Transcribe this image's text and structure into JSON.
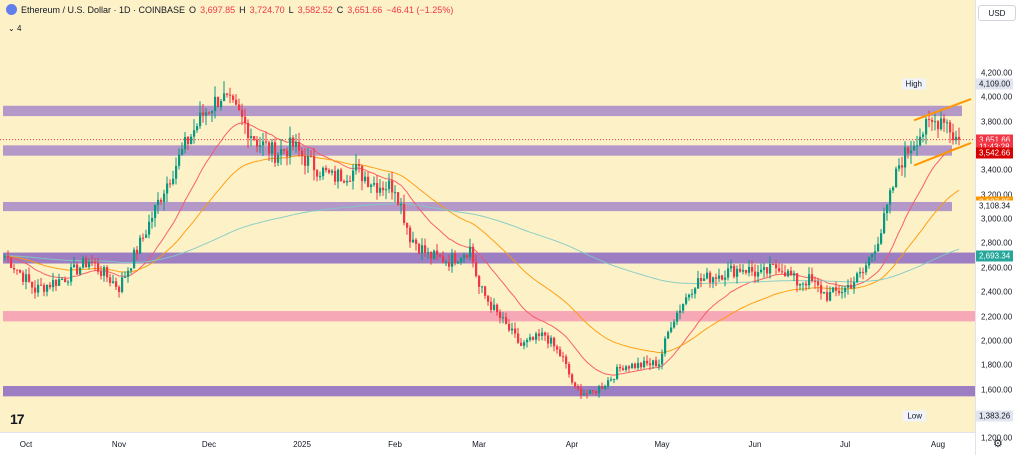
{
  "legend": {
    "title": "Ethereum / U.S. Dollar · 1D · COINBASE",
    "o_label": "O",
    "o_val": "3,697.85",
    "h_label": "H",
    "h_val": "3,724.70",
    "l_label": "L",
    "l_val": "3,582.52",
    "c_label": "C",
    "c_val": "3,651.66",
    "change": "−46.41 (−1.25%)"
  },
  "indicators_toggle": "4",
  "currency_button": "USD",
  "high_label": "High",
  "low_label": "Low",
  "watermark": "17",
  "colors": {
    "up": "#089981",
    "down": "#f23645",
    "ema_fast": "#f7525f",
    "ema_slow": "#ff9800",
    "ema_long": "#80cbc4",
    "zone_purple": "#9b7bc8",
    "zone_deep": "#7e57c2",
    "zone_pink": "#f48fb1",
    "channel": "#ff9800"
  },
  "chart_data": {
    "type": "candlestick",
    "title": "Ethereum / U.S. Dollar · 1D · COINBASE",
    "y_axis": {
      "ylim": [
        1080,
        4330
      ],
      "ticks": [
        "4,200.00",
        "4,000.00",
        "3,800.00",
        "3,600.00",
        "3,400.00",
        "3,200.00",
        "3,000.00",
        "2,800.00",
        "2,600.00",
        "2,400.00",
        "2,200.00",
        "2,000.00",
        "1,800.00",
        "1,600.00",
        "1,400.00",
        "1,200.00"
      ],
      "tick_values": [
        4200,
        4000,
        3800,
        3600,
        3400,
        3200,
        3000,
        2800,
        2600,
        2400,
        2200,
        2000,
        1800,
        1600,
        1400,
        1200
      ]
    },
    "x_axis": {
      "labels": [
        "Oct",
        "Nov",
        "Dec",
        "2025",
        "Feb",
        "Mar",
        "Apr",
        "May",
        "Jun",
        "Jul",
        "Aug"
      ],
      "label_index": [
        7,
        38,
        68,
        99,
        130,
        158,
        189,
        219,
        250,
        280,
        311
      ]
    },
    "keypoints": [
      [
        0,
        2700
      ],
      [
        10,
        2420
      ],
      [
        20,
        2520
      ],
      [
        28,
        2660
      ],
      [
        38,
        2440
      ],
      [
        46,
        2850
      ],
      [
        53,
        3250
      ],
      [
        60,
        3600
      ],
      [
        66,
        3860
      ],
      [
        72,
        4010
      ],
      [
        78,
        3850
      ],
      [
        84,
        3640
      ],
      [
        90,
        3540
      ],
      [
        96,
        3600
      ],
      [
        101,
        3470
      ],
      [
        109,
        3340
      ],
      [
        117,
        3400
      ],
      [
        124,
        3280
      ],
      [
        130,
        3270
      ],
      [
        135,
        2860
      ],
      [
        141,
        2700
      ],
      [
        148,
        2660
      ],
      [
        155,
        2760
      ],
      [
        158,
        2440
      ],
      [
        164,
        2220
      ],
      [
        172,
        1960
      ],
      [
        180,
        2050
      ],
      [
        186,
        1850
      ],
      [
        190,
        1600
      ],
      [
        195,
        1560
      ],
      [
        200,
        1650
      ],
      [
        206,
        1800
      ],
      [
        212,
        1800
      ],
      [
        218,
        1820
      ],
      [
        222,
        2150
      ],
      [
        230,
        2480
      ],
      [
        238,
        2550
      ],
      [
        246,
        2600
      ],
      [
        252,
        2540
      ],
      [
        258,
        2620
      ],
      [
        264,
        2480
      ],
      [
        268,
        2500
      ],
      [
        274,
        2370
      ],
      [
        280,
        2430
      ],
      [
        286,
        2560
      ],
      [
        292,
        2900
      ],
      [
        298,
        3450
      ],
      [
        304,
        3680
      ],
      [
        308,
        3760
      ],
      [
        313,
        3850
      ],
      [
        316,
        3690
      ],
      [
        318,
        3651.66
      ]
    ],
    "series": [
      {
        "type": "ema",
        "period": 21,
        "color": "#f7525f"
      },
      {
        "type": "ema",
        "period": 50,
        "color": "#ff9800"
      },
      {
        "type": "ema",
        "period": 200,
        "color": "#80cbc4"
      }
    ],
    "zones": [
      {
        "from": 3845,
        "to": 3930,
        "end": "extended",
        "color": "#9b7bc8"
      },
      {
        "from": 3520,
        "to": 3605,
        "end": "partial",
        "color": "#9b7bc8"
      },
      {
        "from": 3065,
        "to": 3140,
        "end": "partial",
        "color": "#9b7bc8"
      },
      {
        "from": 2635,
        "to": 2725,
        "end": "full",
        "color": "#7e57c2"
      },
      {
        "from": 2160,
        "to": 2245,
        "end": "full",
        "color": "#f48fb1"
      },
      {
        "from": 1545,
        "to": 1630,
        "end": "full",
        "color": "#7e57c2"
      }
    ],
    "channel": {
      "upper": [
        [
          303,
          3810
        ],
        [
          322,
          3985
        ]
      ],
      "lower": [
        [
          303,
          3440
        ],
        [
          322,
          3625
        ]
      ]
    },
    "price_tags": [
      {
        "label": "4,109.00",
        "value": 4109,
        "bg": "#e1e5ef",
        "fg": "#131722",
        "side": "High"
      },
      {
        "label": "3,651.66",
        "value": 3651.66,
        "bg": "#f23645",
        "fg": "#ffffff"
      },
      {
        "label": "11:43:28",
        "value": 3595,
        "bg": "#f23645",
        "fg": "#ffffff"
      },
      {
        "label": "3,542.66",
        "value": 3542.66,
        "bg": "#d50000",
        "fg": "#ffffff"
      },
      {
        "label": "3,137.25",
        "value": 3137.25,
        "bg": "#ff9800",
        "fg": "#ffffff"
      },
      {
        "label": "3,108.34",
        "value": 3108.34,
        "bg": "#ffffff",
        "fg": "#131722"
      },
      {
        "label": "2,693.34",
        "value": 2693.34,
        "bg": "#26a69a",
        "fg": "#ffffff"
      },
      {
        "label": "1,383.26",
        "value": 1383.26,
        "bg": "#e1e5ef",
        "fg": "#131722",
        "side": "Low"
      }
    ],
    "grid": false
  }
}
